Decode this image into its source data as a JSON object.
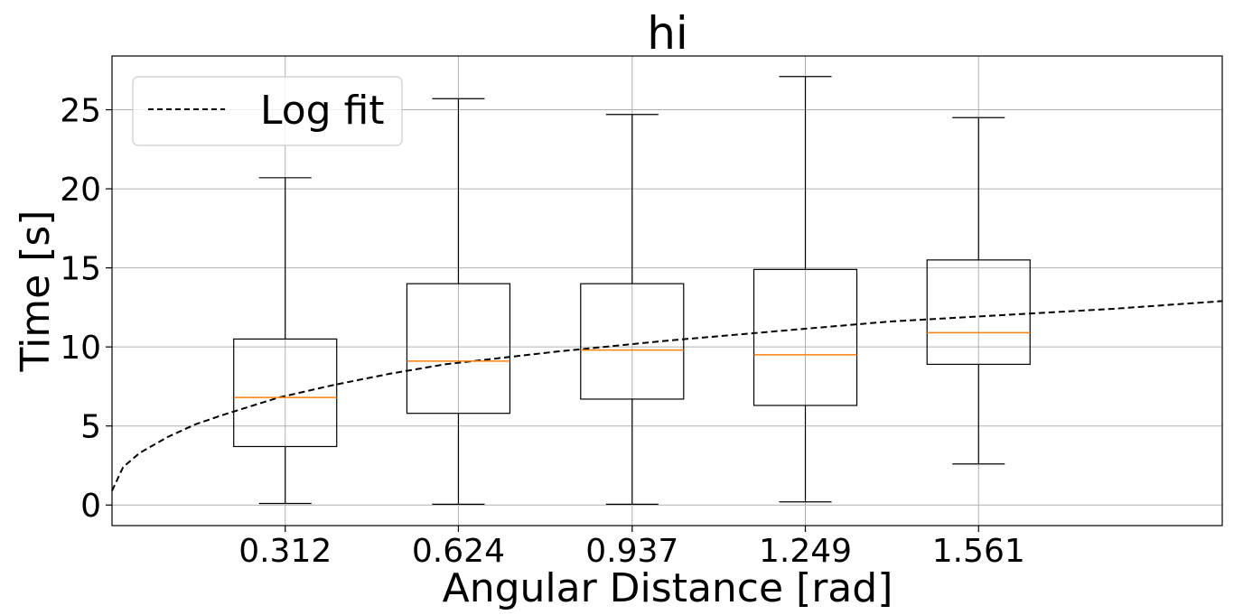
{
  "chart_data": {
    "type": "box",
    "title": "hi",
    "xlabel": "Angular Distance [rad]",
    "ylabel": "Time [s]",
    "categories": [
      "0.312",
      "0.624",
      "0.937",
      "1.249",
      "1.561"
    ],
    "x_positions": [
      0.312,
      0.624,
      0.937,
      1.249,
      1.561
    ],
    "xlim": [
      0.0,
      2.0
    ],
    "ylim": [
      -1.3,
      28.4
    ],
    "yticks": [
      0,
      5,
      10,
      15,
      20,
      25
    ],
    "grid": true,
    "boxes": [
      {
        "whisker_low": 0.1,
        "q1": 3.7,
        "median": 6.8,
        "q3": 10.5,
        "whisker_high": 20.7
      },
      {
        "whisker_low": 0.05,
        "q1": 5.8,
        "median": 9.1,
        "q3": 14.0,
        "whisker_high": 25.7
      },
      {
        "whisker_low": 0.05,
        "q1": 6.7,
        "median": 9.8,
        "q3": 14.0,
        "whisker_high": 24.7
      },
      {
        "whisker_low": 0.2,
        "q1": 6.3,
        "median": 9.5,
        "q3": 14.9,
        "whisker_high": 27.1
      },
      {
        "whisker_low": 2.6,
        "q1": 8.9,
        "median": 10.9,
        "q3": 15.5,
        "whisker_high": 24.5
      }
    ],
    "fit": {
      "name": "Log fit",
      "x": [
        0.0,
        0.02,
        0.05,
        0.1,
        0.15,
        0.2,
        0.3,
        0.4,
        0.5,
        0.6,
        0.8,
        1.0,
        1.2,
        1.4,
        1.6,
        1.8,
        2.0
      ],
      "y": [
        0.9,
        2.4,
        3.3,
        4.3,
        5.1,
        5.7,
        6.8,
        7.6,
        8.3,
        8.9,
        9.7,
        10.4,
        11.0,
        11.6,
        12.0,
        12.4,
        12.9
      ]
    },
    "legend_position": "upper-left",
    "colors": {
      "box": "#000000",
      "median": "#ff7f0e",
      "fit": "#000000",
      "grid": "#b0b0b0"
    }
  }
}
